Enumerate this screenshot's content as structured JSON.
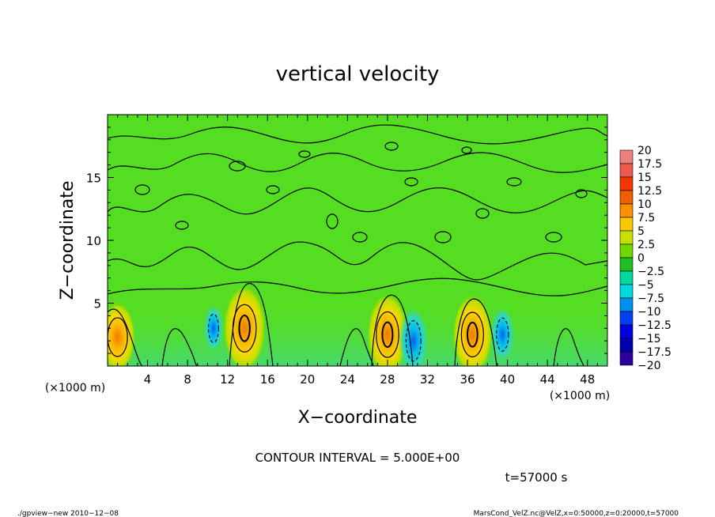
{
  "chart_data": {
    "type": "heatmap",
    "title": "vertical velocity",
    "xlabel": "X−coordinate",
    "ylabel": "Z−coordinate",
    "x_unit_left": "(×1000 m)",
    "x_unit_right": "(×1000 m)",
    "xlim": [
      0,
      50
    ],
    "ylim": [
      0,
      20
    ],
    "x_ticks": [
      4,
      8,
      12,
      16,
      20,
      24,
      28,
      32,
      36,
      40,
      44,
      48
    ],
    "y_ticks": [
      5,
      10,
      15
    ],
    "grid": false,
    "contour_interval_text": "CONTOUR INTERVAL = 5.000E+00",
    "time_text": "t=57000 s",
    "footer_left": "./gpview−new   2010−12−08",
    "footer_right": "MarsCond_VelZ.nc@VelZ,x=0:50000,z=0:20000,t=57000",
    "colorbar": {
      "levels": [
        "20",
        "17.5",
        "15",
        "12.5",
        "10",
        "7.5",
        "5",
        "2.5",
        "0",
        "−2.5",
        "−5",
        "−7.5",
        "−10",
        "−12.5",
        "−15",
        "−17.5",
        "−20"
      ],
      "colors": [
        "#f08080",
        "#ee5a50",
        "#f03800",
        "#f06000",
        "#f89000",
        "#f8c800",
        "#c8e000",
        "#70d800",
        "#20c020",
        "#00d8a0",
        "#00d8e0",
        "#0090f0",
        "#0040f0",
        "#0000e0",
        "#0000b0",
        "#2a00a0",
        "#6000a8"
      ]
    },
    "background_color": "#55dd22",
    "updrafts": [
      {
        "x": 1.0,
        "z": 2.3,
        "peak": 7.5
      },
      {
        "x": 13.7,
        "z": 3.0,
        "peak": 12.0
      },
      {
        "x": 28.0,
        "z": 2.5,
        "peak": 11.0
      },
      {
        "x": 36.5,
        "z": 2.5,
        "peak": 10.5
      }
    ],
    "downdrafts": [
      {
        "x": 30.6,
        "z": 2.0,
        "peak": -9.0
      },
      {
        "x": 39.5,
        "z": 2.5,
        "peak": -6.0
      },
      {
        "x": 10.6,
        "z": 3.0,
        "peak": -4.0
      }
    ]
  }
}
